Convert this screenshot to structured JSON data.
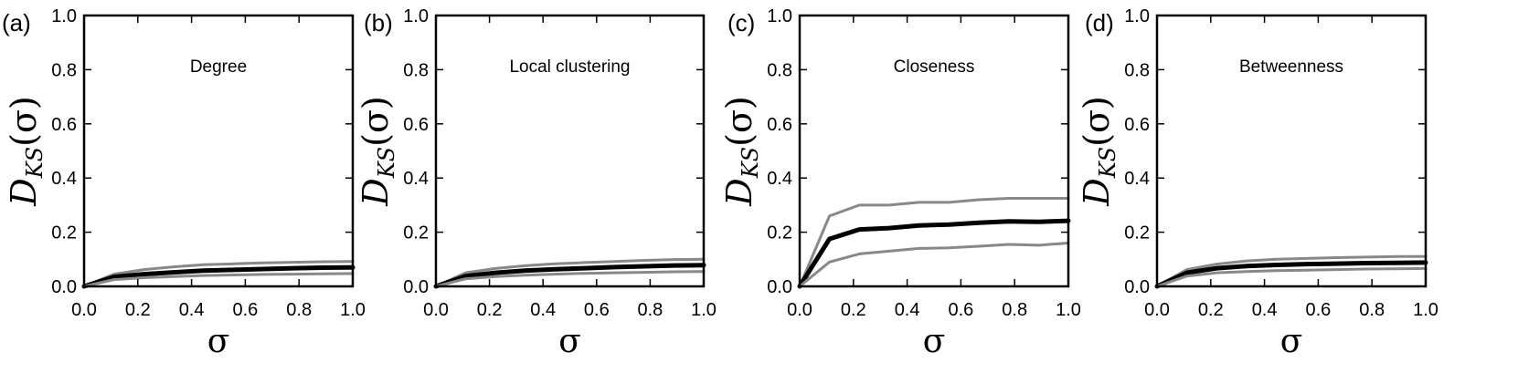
{
  "chart_data": [
    {
      "type": "line",
      "panel_letter": "(a)",
      "title": "Degree",
      "xlabel": "σ",
      "ylabel": {
        "main": "D",
        "sub": "KS",
        "arg": "(σ)"
      },
      "xlim": [
        0.0,
        1.0
      ],
      "ylim": [
        0.0,
        1.0
      ],
      "xticks": [
        "0.0",
        "0.2",
        "0.4",
        "0.6",
        "0.8",
        "1.0"
      ],
      "yticks": [
        "0.0",
        "0.2",
        "0.4",
        "0.6",
        "0.8",
        "1.0"
      ],
      "x": [
        0.0,
        0.111,
        0.222,
        0.333,
        0.444,
        0.556,
        0.667,
        0.778,
        0.889,
        1.0
      ],
      "series": [
        {
          "name": "upper",
          "color": "#888888",
          "values": [
            0.0,
            0.045,
            0.062,
            0.072,
            0.08,
            0.083,
            0.087,
            0.089,
            0.091,
            0.092
          ]
        },
        {
          "name": "mean",
          "color": "#000000",
          "values": [
            0.0,
            0.035,
            0.045,
            0.052,
            0.058,
            0.061,
            0.064,
            0.067,
            0.069,
            0.07
          ]
        },
        {
          "name": "lower",
          "color": "#888888",
          "values": [
            0.0,
            0.025,
            0.032,
            0.036,
            0.04,
            0.042,
            0.044,
            0.045,
            0.046,
            0.047
          ]
        }
      ]
    },
    {
      "type": "line",
      "panel_letter": "(b)",
      "title": "Local clustering",
      "xlabel": "σ",
      "ylabel": {
        "main": "D",
        "sub": "KS",
        "arg": "(σ)"
      },
      "xlim": [
        0.0,
        1.0
      ],
      "ylim": [
        0.0,
        1.0
      ],
      "xticks": [
        "0.0",
        "0.2",
        "0.4",
        "0.6",
        "0.8",
        "1.0"
      ],
      "yticks": [
        "0.0",
        "0.2",
        "0.4",
        "0.6",
        "0.8",
        "1.0"
      ],
      "x": [
        0.0,
        0.111,
        0.222,
        0.333,
        0.444,
        0.556,
        0.667,
        0.778,
        0.889,
        1.0
      ],
      "series": [
        {
          "name": "upper",
          "color": "#888888",
          "values": [
            0.0,
            0.05,
            0.066,
            0.076,
            0.083,
            0.088,
            0.092,
            0.096,
            0.099,
            0.1
          ]
        },
        {
          "name": "mean",
          "color": "#000000",
          "values": [
            0.0,
            0.038,
            0.05,
            0.058,
            0.063,
            0.067,
            0.071,
            0.074,
            0.077,
            0.078
          ]
        },
        {
          "name": "lower",
          "color": "#888888",
          "values": [
            0.0,
            0.028,
            0.036,
            0.041,
            0.045,
            0.048,
            0.05,
            0.052,
            0.054,
            0.055
          ]
        }
      ]
    },
    {
      "type": "line",
      "panel_letter": "(c)",
      "title": "Closeness",
      "xlabel": "σ",
      "ylabel": {
        "main": "D",
        "sub": "KS",
        "arg": "(σ)"
      },
      "xlim": [
        0.0,
        1.0
      ],
      "ylim": [
        0.0,
        1.0
      ],
      "xticks": [
        "0.0",
        "0.2",
        "0.4",
        "0.6",
        "0.8",
        "1.0"
      ],
      "yticks": [
        "0.0",
        "0.2",
        "0.4",
        "0.6",
        "0.8",
        "1.0"
      ],
      "x": [
        0.0,
        0.111,
        0.222,
        0.333,
        0.444,
        0.556,
        0.667,
        0.778,
        0.889,
        1.0
      ],
      "series": [
        {
          "name": "upper",
          "color": "#888888",
          "values": [
            0.0,
            0.26,
            0.3,
            0.3,
            0.31,
            0.31,
            0.32,
            0.325,
            0.325,
            0.325
          ]
        },
        {
          "name": "mean",
          "color": "#000000",
          "values": [
            0.0,
            0.175,
            0.21,
            0.215,
            0.225,
            0.228,
            0.235,
            0.24,
            0.238,
            0.242
          ]
        },
        {
          "name": "lower",
          "color": "#888888",
          "values": [
            0.0,
            0.09,
            0.12,
            0.13,
            0.14,
            0.142,
            0.148,
            0.155,
            0.152,
            0.16
          ]
        }
      ]
    },
    {
      "type": "line",
      "panel_letter": "(d)",
      "title": "Betweenness",
      "xlabel": "σ",
      "ylabel": {
        "main": "D",
        "sub": "KS",
        "arg": "(σ)"
      },
      "xlim": [
        0.0,
        1.0
      ],
      "ylim": [
        0.0,
        1.0
      ],
      "xticks": [
        "0.0",
        "0.2",
        "0.4",
        "0.6",
        "0.8",
        "1.0"
      ],
      "yticks": [
        "0.0",
        "0.2",
        "0.4",
        "0.6",
        "0.8",
        "1.0"
      ],
      "x": [
        0.0,
        0.111,
        0.222,
        0.333,
        0.444,
        0.556,
        0.667,
        0.778,
        0.889,
        1.0
      ],
      "series": [
        {
          "name": "upper",
          "color": "#888888",
          "values": [
            0.0,
            0.062,
            0.082,
            0.094,
            0.1,
            0.103,
            0.106,
            0.108,
            0.11,
            0.11
          ]
        },
        {
          "name": "mean",
          "color": "#000000",
          "values": [
            0.0,
            0.05,
            0.067,
            0.075,
            0.079,
            0.082,
            0.084,
            0.086,
            0.087,
            0.088
          ]
        },
        {
          "name": "lower",
          "color": "#888888",
          "values": [
            0.0,
            0.038,
            0.05,
            0.055,
            0.058,
            0.06,
            0.062,
            0.064,
            0.065,
            0.066
          ]
        }
      ]
    }
  ]
}
